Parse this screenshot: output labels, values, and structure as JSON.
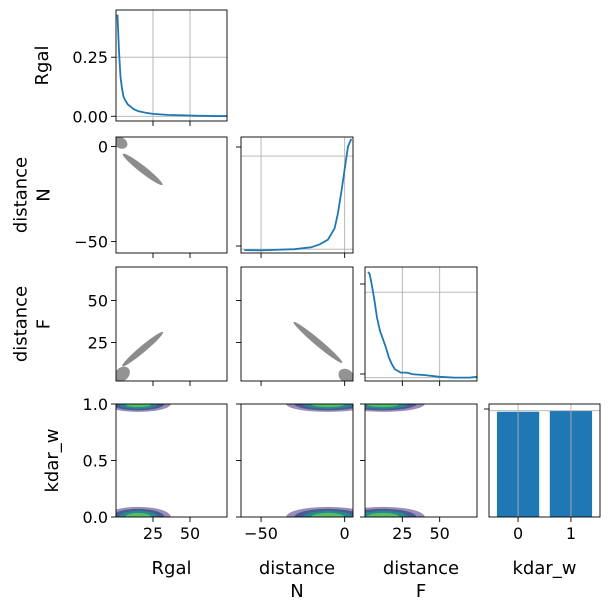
{
  "chart_data": {
    "type": "corner",
    "variables": [
      "Rgal",
      "distance\nN",
      "distance\nF",
      "kdar_w"
    ],
    "colors": {
      "line": "#1f77b4",
      "bar": "#1f77b4",
      "scatter": "#808080",
      "contour": [
        "#46317e",
        "#3b528b",
        "#21908d",
        "#5ec962"
      ]
    },
    "grid": true,
    "diagonal": [
      {
        "type": "line",
        "variable": "Rgal",
        "x": [
          1,
          2,
          3,
          4,
          5,
          6,
          8,
          10,
          12,
          15,
          20,
          25,
          30,
          35,
          40,
          45,
          50,
          55,
          60,
          65,
          70,
          75
        ],
        "y": [
          0.43,
          0.28,
          0.17,
          0.12,
          0.085,
          0.07,
          0.05,
          0.04,
          0.03,
          0.022,
          0.015,
          0.01,
          0.008,
          0.006,
          0.005,
          0.004,
          0.003,
          0.002,
          0.002,
          0.001,
          0.001,
          0.001
        ],
        "xlim": [
          0,
          75
        ],
        "ylim": [
          -0.02,
          0.45
        ],
        "yticks": [
          0.0,
          0.25
        ],
        "yticklabels": [
          "0.00",
          "0.25"
        ],
        "xgrid": [
          25,
          50
        ],
        "ygrid": [
          0.0,
          0.25
        ]
      },
      {
        "type": "line",
        "variable": "distance N",
        "x": [
          -60,
          -50,
          -40,
          -30,
          -20,
          -15,
          -10,
          -6,
          -4,
          -2,
          0,
          2,
          4
        ],
        "y": [
          -54.5,
          -54.6,
          -54.3,
          -54,
          -53,
          -51.5,
          -49,
          -43,
          -35,
          -24,
          -12,
          0,
          4
        ],
        "xlim": [
          -62,
          5
        ],
        "ylim": [
          -56,
          5
        ],
        "xgrid": [
          -50,
          0
        ],
        "ygrid": [
          -5,
          -54
        ]
      },
      {
        "type": "line",
        "variable": "distance F",
        "x": [
          2,
          3,
          4,
          6,
          8,
          10,
          12,
          14,
          16,
          18,
          20,
          24,
          28,
          32,
          40,
          50,
          60,
          70,
          75
        ],
        "y": [
          67,
          66,
          62,
          52,
          40,
          32,
          27,
          22,
          16,
          12,
          9,
          7,
          7,
          6,
          5.5,
          4.5,
          4,
          4,
          4.5
        ],
        "xlim": [
          0,
          75
        ],
        "ylim": [
          2,
          70
        ],
        "xgrid": [
          25,
          50
        ],
        "ygrid": [
          55,
          4
        ]
      },
      {
        "type": "bar",
        "variable": "kdar_w",
        "categories": [
          "0",
          "1"
        ],
        "values": [
          0.95,
          0.96
        ],
        "xlim": [
          -0.55,
          1.55
        ],
        "ylim": [
          0,
          1.02
        ],
        "xticks": [
          0,
          1
        ],
        "xticklabels": [
          "0",
          "1"
        ]
      }
    ],
    "off_diagonal": {
      "distance_N_vs_Rgal": {
        "type": "scatter",
        "xlim": [
          0,
          75
        ],
        "ylim": [
          -56,
          5
        ],
        "clouds": [
          {
            "cx": 3,
            "cy": 2,
            "rx": 5,
            "ry": 2.5,
            "angle": 30,
            "alpha": 0.85
          },
          {
            "cx": 18,
            "cy": -12,
            "rx": 17,
            "ry": 1.6,
            "angle": 38,
            "alpha": 0.9
          }
        ]
      },
      "distance_F_vs_Rgal": {
        "type": "scatter",
        "xlim": [
          0,
          75
        ],
        "ylim": [
          2,
          70
        ],
        "clouds": [
          {
            "cx": 4,
            "cy": 6,
            "rx": 6,
            "ry": 3,
            "angle": -40,
            "alpha": 0.85
          },
          {
            "cx": 18,
            "cy": 21,
            "rx": 18,
            "ry": 1.5,
            "angle": -40,
            "alpha": 0.9
          }
        ]
      },
      "distance_F_vs_distance_N": {
        "type": "scatter",
        "xlim": [
          -62,
          5
        ],
        "ylim": [
          2,
          70
        ],
        "clouds": [
          {
            "cx": 1,
            "cy": 5,
            "rx": 5,
            "ry": 3,
            "angle": 35,
            "alpha": 0.85
          },
          {
            "cx": -16,
            "cy": 25,
            "rx": 19,
            "ry": 1.5,
            "angle": 40,
            "alpha": 0.9
          }
        ]
      },
      "kdar_vs_Rgal": {
        "type": "contour",
        "xlim": [
          0,
          75
        ],
        "ylim": [
          0,
          1
        ],
        "blobs": [
          {
            "cx": 15,
            "cy": 1.0,
            "rx": 22,
            "ry": 0.07
          },
          {
            "cx": 15,
            "cy": 0.0,
            "rx": 22,
            "ry": 0.09
          }
        ]
      },
      "kdar_vs_distance_N": {
        "type": "contour",
        "xlim": [
          -62,
          5
        ],
        "ylim": [
          0,
          1
        ],
        "blobs": [
          {
            "cx": -10,
            "cy": 1.0,
            "rx": 25,
            "ry": 0.07
          },
          {
            "cx": -10,
            "cy": 0.0,
            "rx": 25,
            "ry": 0.09
          }
        ]
      },
      "kdar_vs_distance_F": {
        "type": "contour",
        "xlim": [
          0,
          75
        ],
        "ylim": [
          0,
          1
        ],
        "blobs": [
          {
            "cx": 12,
            "cy": 1.0,
            "rx": 28,
            "ry": 0.07
          },
          {
            "cx": 12,
            "cy": 0.0,
            "rx": 28,
            "ry": 0.09
          }
        ]
      }
    },
    "axes_labels": {
      "x": [
        "Rgal",
        "distance\nN",
        "distance\nF",
        "kdar_w"
      ],
      "y": [
        "Rgal",
        "distance\nN",
        "distance\nF",
        "kdar_w"
      ]
    },
    "ticks": {
      "Rgal": {
        "values": [
          25,
          50
        ],
        "labels": [
          "25",
          "50"
        ]
      },
      "distance_N": {
        "values": [
          -50,
          0
        ],
        "labels": [
          "−50",
          "0"
        ]
      },
      "distance_F": {
        "values": [
          25,
          50
        ],
        "labels": [
          "25",
          "50"
        ]
      },
      "kdar_w": {
        "values": [
          0.0,
          0.5,
          1.0
        ],
        "labels": [
          "0.0",
          "0.5",
          "1.0"
        ]
      }
    }
  }
}
